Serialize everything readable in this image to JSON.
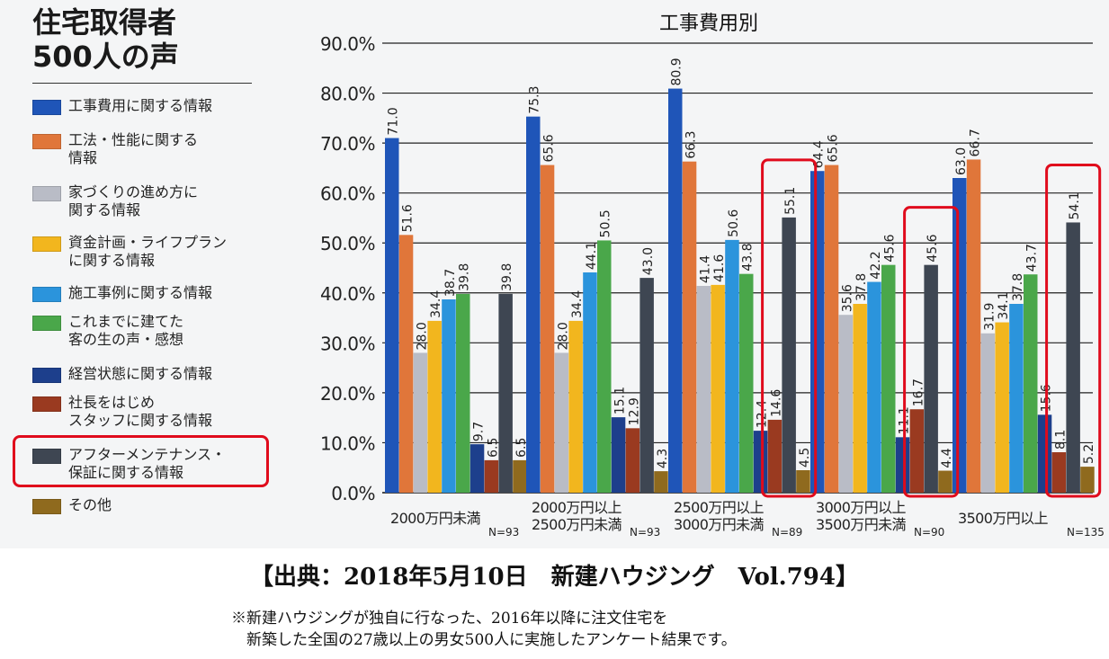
{
  "header": {
    "title": "住宅取得者\n500人の声"
  },
  "colors": {
    "highlight": "#e00b1c",
    "grid": "#222222",
    "panel_background": "#f4f5f6"
  },
  "chart_data": {
    "type": "bar",
    "title": "工事費用別",
    "xlabel": "",
    "ylabel": "",
    "ylim": [
      0,
      90
    ],
    "yticks": [
      "0.0%",
      "10.0%",
      "20.0%",
      "30.0%",
      "40.0%",
      "50.0%",
      "60.0%",
      "70.0%",
      "80.0%",
      "90.0%"
    ],
    "grid": true,
    "legend_position": "left",
    "categories": [
      {
        "label": "2000万円未満",
        "n": "N=93"
      },
      {
        "label": "2000万円以上\n2500万円未満",
        "n": "N=93"
      },
      {
        "label": "2500万円以上\n3000万円未満",
        "n": "N=89"
      },
      {
        "label": "3000万円以上\n3500万円未満",
        "n": "N=90"
      },
      {
        "label": "3500万円以上",
        "n": "N=135"
      }
    ],
    "series": [
      {
        "name": "工事費用に関する情報",
        "color": "#1f55b8",
        "values": [
          71.0,
          75.3,
          80.9,
          64.4,
          63.0
        ],
        "labels": [
          "71.0",
          "75.3",
          "80.9",
          "64.4",
          "63.0"
        ]
      },
      {
        "name": "工法・性能に関する\n情報",
        "color": "#e0763a",
        "values": [
          51.6,
          65.6,
          66.3,
          65.6,
          66.7
        ],
        "labels": [
          "51.6",
          "65.6",
          "66.3",
          "65.6",
          "66.7"
        ]
      },
      {
        "name": "家づくりの進め方に\n関する情報",
        "color": "#b9bcc6",
        "values": [
          28.0,
          28.0,
          41.4,
          35.6,
          31.9
        ],
        "labels": [
          "28.0",
          "28.0",
          "41.4",
          "35.6",
          "31.9"
        ]
      },
      {
        "name": "資金計画・ライフプラン\nに関する情報",
        "color": "#f2b61e",
        "values": [
          34.4,
          34.4,
          41.6,
          37.8,
          34.1
        ],
        "labels": [
          "34.4",
          "34.4",
          "41.6",
          "37.8",
          "34.1"
        ]
      },
      {
        "name": "施工事例に関する情報",
        "color": "#2b94dc",
        "values": [
          38.7,
          44.1,
          50.6,
          42.2,
          37.8
        ],
        "labels": [
          "38.7",
          "44.1",
          "50.6",
          "42.2",
          "37.8"
        ]
      },
      {
        "name": "これまでに建てた\n客の生の声・感想",
        "color": "#4aa74a",
        "values": [
          39.8,
          50.5,
          43.8,
          45.6,
          43.7
        ],
        "labels": [
          "39.8",
          "50.5",
          "43.8",
          "45.6",
          "43.7"
        ]
      },
      {
        "name": "経営状態に関する情報",
        "color": "#1d3f8c",
        "values": [
          9.7,
          15.1,
          12.4,
          11.1,
          15.6
        ],
        "labels": [
          "9.7",
          "15.1",
          "12.4",
          "11.1",
          "15.6"
        ]
      },
      {
        "name": "社長をはじめ\nスタッフに関する情報",
        "color": "#9a3a20",
        "values": [
          6.5,
          12.9,
          14.6,
          16.7,
          8.1
        ],
        "labels": [
          "6.5",
          "12.9",
          "14.6",
          "16.7",
          "8.1"
        ]
      },
      {
        "name": "アフターメンテナンス・\n保証に関する情報",
        "color": "#3e4652",
        "values": [
          39.8,
          43.0,
          55.1,
          45.6,
          54.1
        ],
        "labels": [
          "39.8",
          "43.0",
          "55.1",
          "45.6",
          "54.1"
        ]
      },
      {
        "name": "その他",
        "color": "#8f6a1e",
        "values": [
          6.5,
          4.3,
          4.5,
          4.4,
          5.2
        ],
        "labels": [
          "6.5",
          "4.3",
          "4.5",
          "4.4",
          "5.2"
        ]
      }
    ]
  },
  "footer": {
    "source": "【出典：2018年5月10日　新建ハウジング　Vol.794】",
    "note": "※新建ハウジングが独自に行なった、2016年以降に注文住宅を\n　新築した全国の27歳以上の男女500人に実施したアンケート結果です。"
  }
}
